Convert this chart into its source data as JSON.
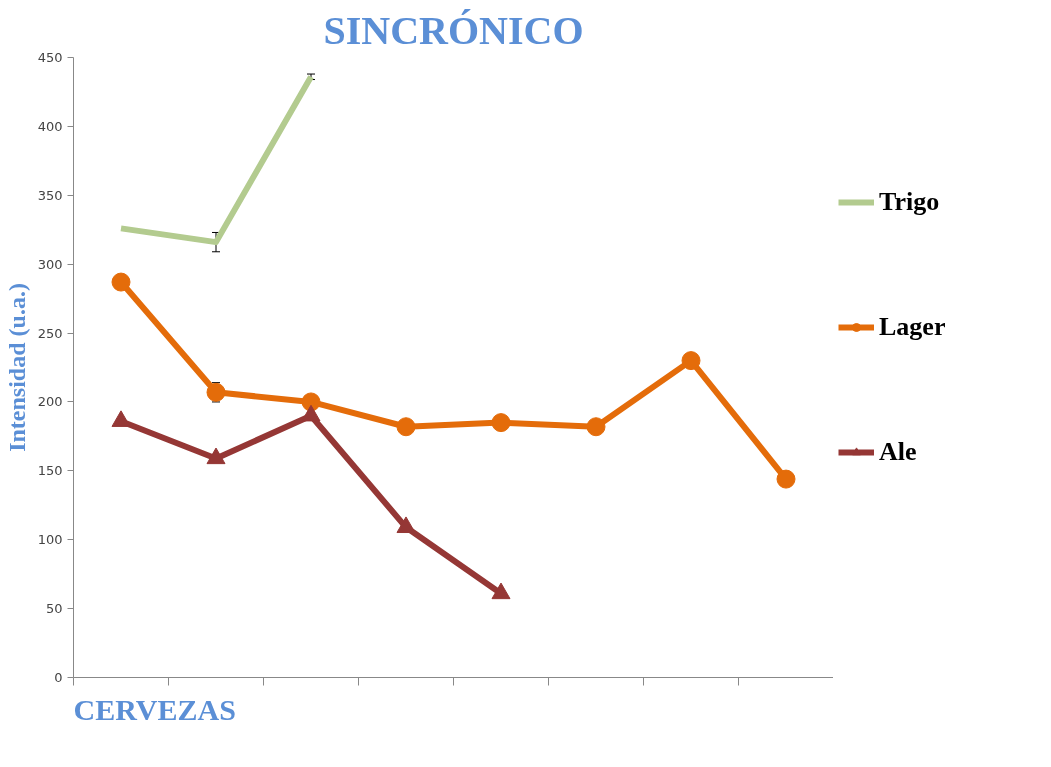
{
  "chart_data": {
    "type": "line",
    "title": "SINCRÓNICO",
    "xlabel": "CERVEZAS",
    "ylabel": "Intensidad (u.a.)",
    "categories": [
      null,
      null,
      null,
      null,
      null,
      null,
      null,
      null
    ],
    "series": [
      {
        "name": "Trigo",
        "color": "#b3cb8f",
        "marker": "none",
        "values": [
          326,
          316,
          436,
          null,
          null,
          null,
          null,
          null
        ],
        "errors": [
          null,
          7,
          2,
          null,
          null,
          null,
          null,
          null
        ]
      },
      {
        "name": "Lager",
        "color": "#e46c0a",
        "marker": "circle",
        "values": [
          287,
          207,
          200,
          182,
          185,
          182,
          230,
          144
        ],
        "errors": [
          null,
          7,
          null,
          null,
          null,
          null,
          null,
          null
        ]
      },
      {
        "name": "Ale",
        "color": "#953735",
        "marker": "triangle",
        "values": [
          186,
          159,
          190,
          109,
          61,
          null,
          null,
          null
        ]
      }
    ],
    "ylim": [
      0,
      450
    ],
    "yticks": [
      0,
      50,
      100,
      150,
      200,
      250,
      300,
      350,
      400,
      450
    ],
    "grid": false,
    "legend": "right"
  }
}
